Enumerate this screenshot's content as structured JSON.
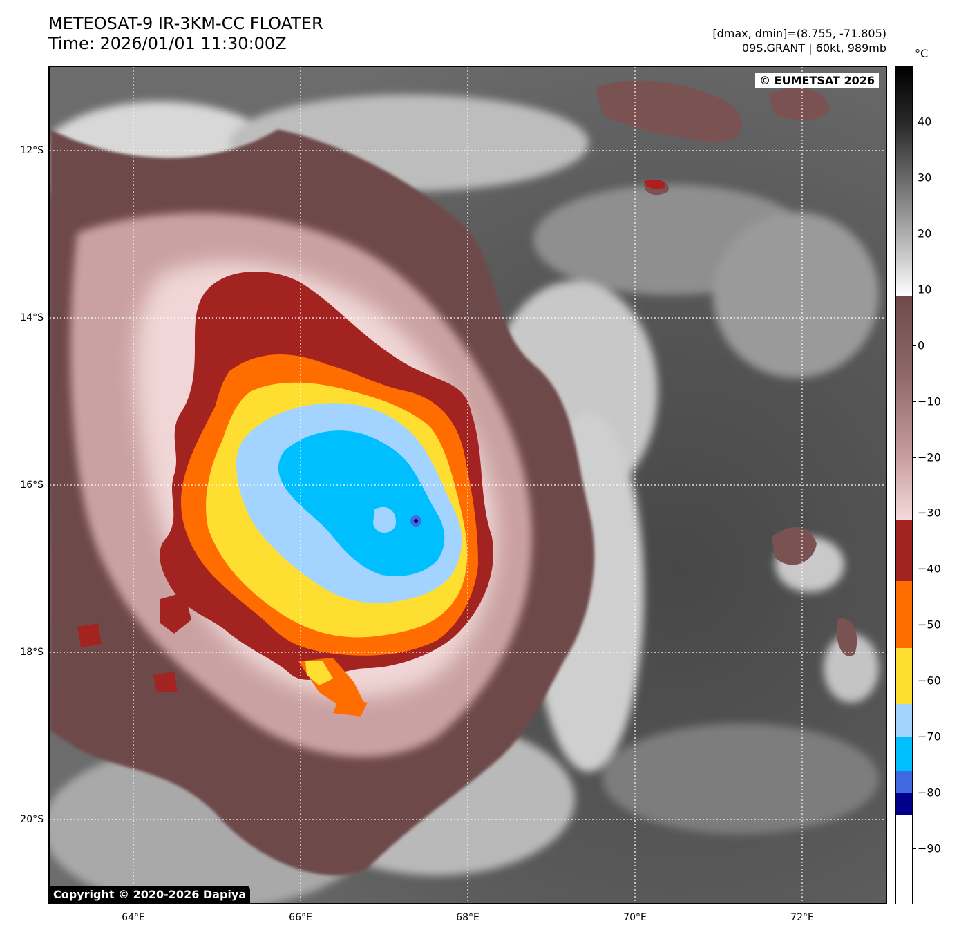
{
  "header": {
    "title_line1": "METEOSAT-9 IR-3KM-CC FLOATER",
    "title_line2": "Time: 2026/01/01 11:30:00Z",
    "meta_line1": "[dmax, dmin]=(8.755, -71.805)",
    "meta_line2": "09S.GRANT | 60kt, 989mb"
  },
  "credits": {
    "top_right": "© EUMETSAT 2026",
    "bottom_left": "Copyright © 2020-2026 Dapiya"
  },
  "map": {
    "lon_range": [
      63,
      73
    ],
    "lat_range": [
      -21,
      -11
    ],
    "lat_labels": [
      {
        "value": -12,
        "text": "12°S"
      },
      {
        "value": -14,
        "text": "14°S"
      },
      {
        "value": -16,
        "text": "16°S"
      },
      {
        "value": -18,
        "text": "18°S"
      },
      {
        "value": -20,
        "text": "20°S"
      }
    ],
    "lon_labels": [
      {
        "value": 64,
        "text": "64°E"
      },
      {
        "value": 66,
        "text": "66°E"
      },
      {
        "value": 68,
        "text": "68°E"
      },
      {
        "value": 70,
        "text": "70°E"
      },
      {
        "value": 72,
        "text": "72°E"
      }
    ],
    "storm_center": {
      "lon": 67.4,
      "lat": -16.3
    }
  },
  "colorbar": {
    "unit": "°C",
    "range": [
      -100,
      50
    ],
    "ticks": [
      {
        "value": 40,
        "text": "40"
      },
      {
        "value": 30,
        "text": "30"
      },
      {
        "value": 20,
        "text": "20"
      },
      {
        "value": 10,
        "text": "10"
      },
      {
        "value": 0,
        "text": "0"
      },
      {
        "value": -10,
        "text": "−10"
      },
      {
        "value": -20,
        "text": "−20"
      },
      {
        "value": -30,
        "text": "−30"
      },
      {
        "value": -40,
        "text": "−40"
      },
      {
        "value": -50,
        "text": "−50"
      },
      {
        "value": -60,
        "text": "−60"
      },
      {
        "value": -70,
        "text": "−70"
      },
      {
        "value": -80,
        "text": "−80"
      },
      {
        "value": -90,
        "text": "−90"
      }
    ],
    "bands": [
      {
        "from": 9,
        "to": 50,
        "color": "gradient-gray"
      },
      {
        "from": -31,
        "to": 9,
        "color": "gradient-brown-pink"
      },
      {
        "from": -42,
        "to": -31,
        "color": "#a32320"
      },
      {
        "from": -54,
        "to": -42,
        "color": "#ff6d00"
      },
      {
        "from": -64,
        "to": -54,
        "color": "#ffde32"
      },
      {
        "from": -70,
        "to": -64,
        "color": "#a3d4ff"
      },
      {
        "from": -76,
        "to": -70,
        "color": "#00bfff"
      },
      {
        "from": -80,
        "to": -76,
        "color": "#4169e1"
      },
      {
        "from": -84,
        "to": -80,
        "color": "#00008b"
      },
      {
        "from": -100,
        "to": -84,
        "color": "#ffffff"
      }
    ]
  },
  "colors": {
    "dark_red": "#a32320",
    "orange": "#ff6d00",
    "yellow": "#ffde32",
    "light_blue": "#a3d4ff",
    "cyan": "#00bfff",
    "royal_blue": "#4169e1",
    "navy": "#00008b",
    "brown": "#6e4a4a",
    "pink": "#ecc8c8",
    "sea_gray": "#5c5c5c"
  }
}
